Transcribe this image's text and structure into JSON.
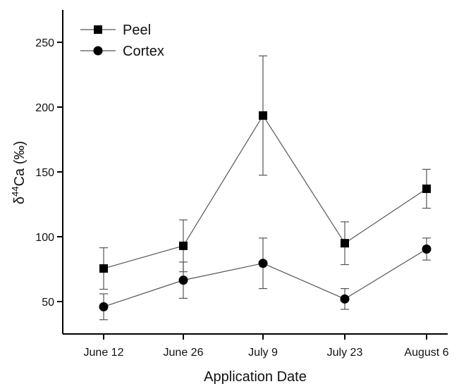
{
  "chart_data": {
    "type": "line",
    "categories": [
      "June 12",
      "June 26",
      "July 9",
      "July 23",
      "August 6"
    ],
    "xlabel": "Application Date",
    "ylabel": {
      "prefix": "δ",
      "superscript": "44",
      "main": "Ca (‰)"
    },
    "ylim": [
      25,
      275
    ],
    "yticks": [
      50,
      100,
      150,
      200,
      250
    ],
    "grid": false,
    "legend_position": "top-left",
    "series": [
      {
        "name": "Peel",
        "marker": "square",
        "color": "#000000",
        "values": [
          75.5,
          93,
          193.5,
          95,
          137
        ],
        "error": [
          16,
          20,
          46,
          16.5,
          15
        ]
      },
      {
        "name": "Cortex",
        "marker": "circle",
        "color": "#000000",
        "values": [
          46,
          66.5,
          79.5,
          52,
          90.5
        ],
        "error": [
          10,
          14,
          19.5,
          8,
          8.5
        ]
      }
    ]
  }
}
